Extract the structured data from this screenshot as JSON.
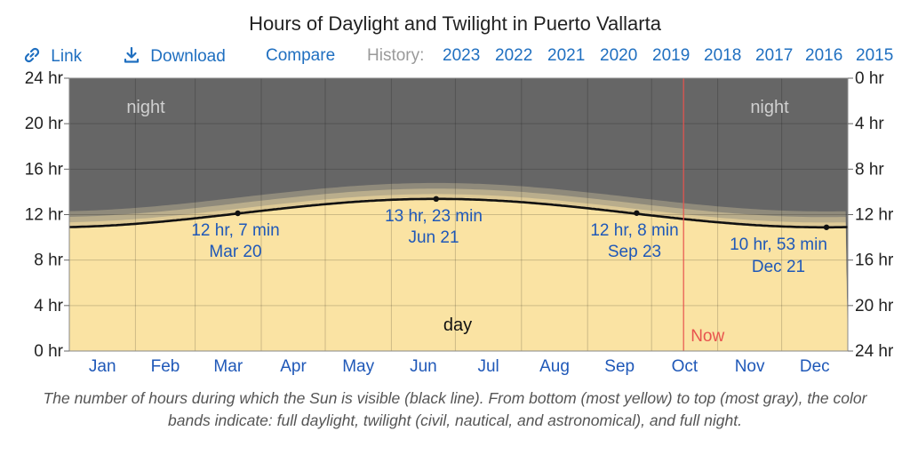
{
  "title": "Hours of Daylight and Twilight in Puerto Vallarta",
  "toolbar": {
    "link_label": "Link",
    "download_label": "Download",
    "compare_label": "Compare",
    "history_label": "History:",
    "history_years": [
      "2023",
      "2022",
      "2021",
      "2020",
      "2019",
      "2018",
      "2017",
      "2016",
      "2015"
    ]
  },
  "colors": {
    "accent": "#1f6fc0",
    "day": "#fae3a3",
    "night": "#666666",
    "now_line": "#e8534e",
    "daylight_line": "#111111"
  },
  "chart_data": {
    "type": "area",
    "title": "Hours of Daylight and Twilight in Puerto Vallarta",
    "months": [
      "Jan",
      "Feb",
      "Mar",
      "Apr",
      "May",
      "Jun",
      "Jul",
      "Aug",
      "Sep",
      "Oct",
      "Nov",
      "Dec"
    ],
    "left_axis_ticks": [
      "0 hr",
      "4 hr",
      "8 hr",
      "12 hr",
      "16 hr",
      "20 hr",
      "24 hr"
    ],
    "right_axis_ticks": [
      "24 hr",
      "20 hr",
      "16 hr",
      "12 hr",
      "8 hr",
      "4 hr",
      "0 hr"
    ],
    "ylim": [
      0,
      24
    ],
    "xlim_days": [
      0,
      365
    ],
    "daylight_hours": {
      "shortest": 10.883,
      "longest": 13.383,
      "longest_day_of_year": 172
    },
    "twilight_offsets_hours": {
      "civil": 0.42,
      "nautical": 0.9,
      "astronomical": 1.4
    },
    "points": [
      {
        "day": 79,
        "hours": 12.117,
        "label_line1": "12 hr, 7 min",
        "label_line2": "Mar 20"
      },
      {
        "day": 172,
        "hours": 13.383,
        "label_line1": "13 hr, 23 min",
        "label_line2": "Jun 21"
      },
      {
        "day": 266,
        "hours": 12.133,
        "label_line1": "12 hr, 8 min",
        "label_line2": "Sep 23"
      },
      {
        "day": 355,
        "hours": 10.883,
        "label_line1": "10 hr, 53 min",
        "label_line2": "Dec 21"
      }
    ],
    "now": {
      "day": 288,
      "label": "Now"
    },
    "band_labels": {
      "night": "night",
      "day": "day"
    }
  },
  "caption": "The number of hours during which the Sun is visible (black line). From bottom (most yellow) to top (most gray), the color bands indicate: full daylight, twilight (civil, nautical, and astronomical), and full night."
}
